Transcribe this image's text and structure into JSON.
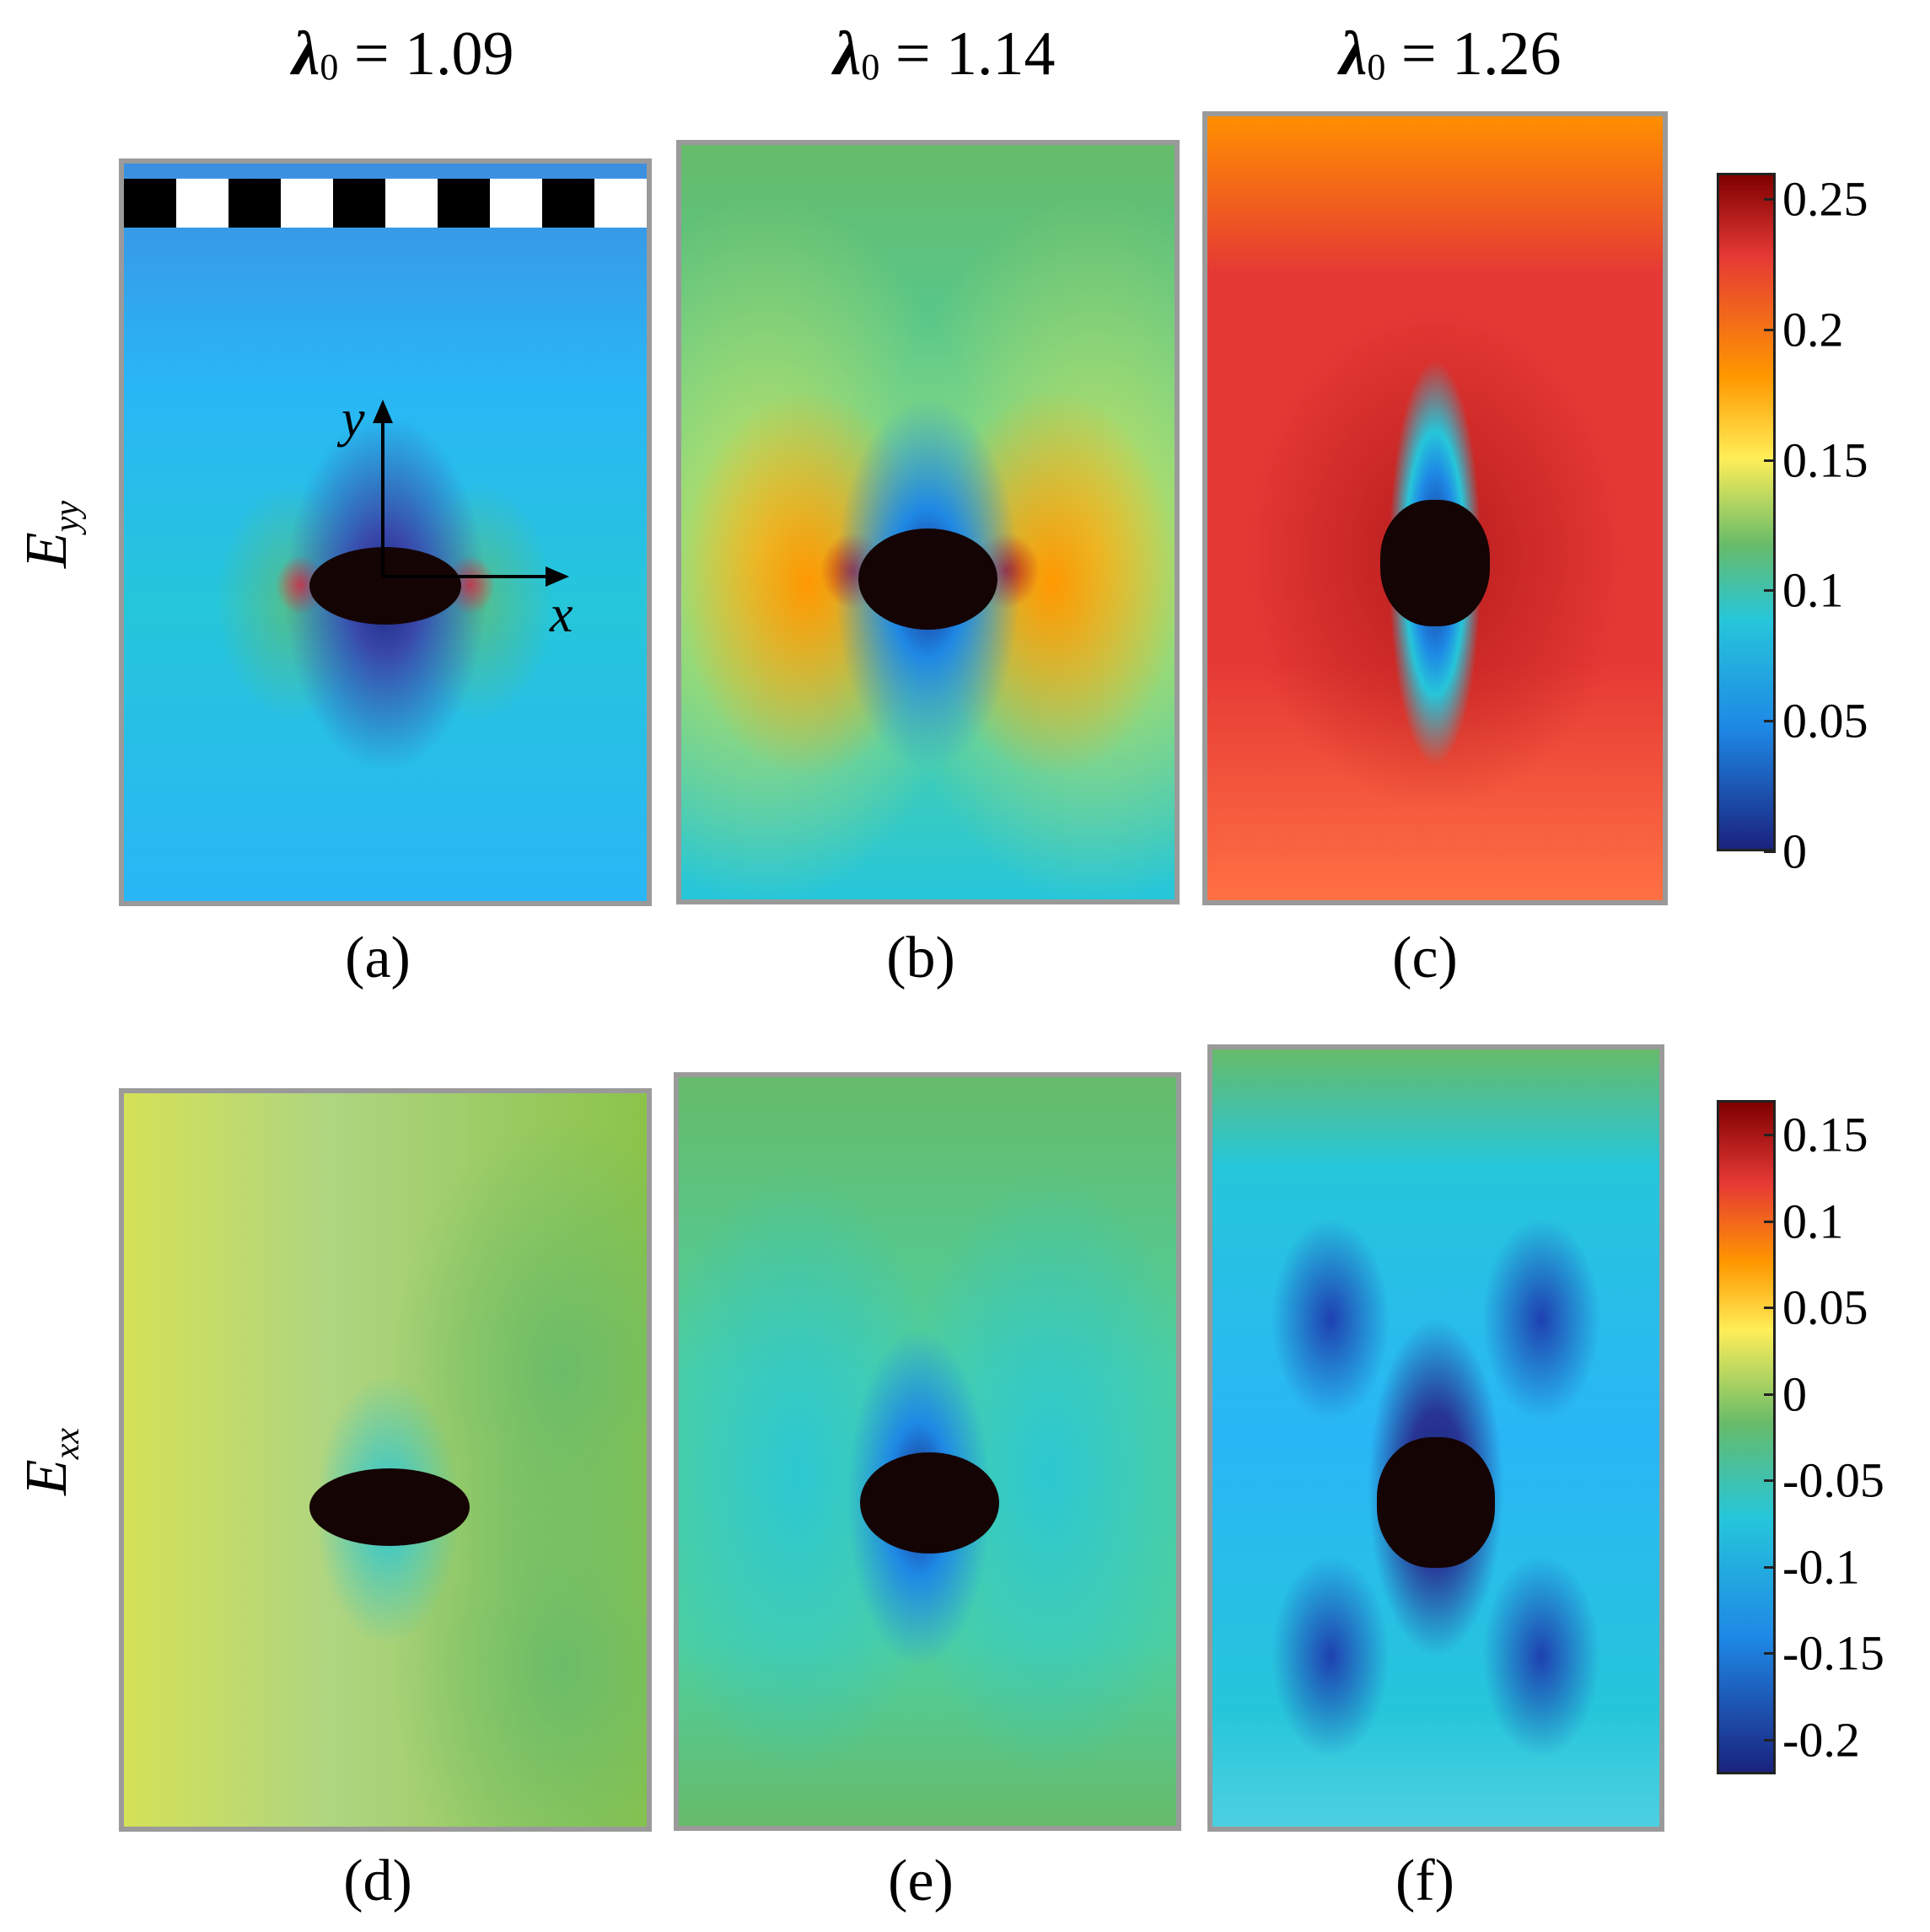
{
  "columns": [
    {
      "symbol": "λ",
      "subscript": "0",
      "value": "= 1.09"
    },
    {
      "symbol": "λ",
      "subscript": "0",
      "value": "= 1.14"
    },
    {
      "symbol": "λ",
      "subscript": "0",
      "value": "= 1.26"
    }
  ],
  "rows": [
    {
      "symbol": "E",
      "subscript": "yy"
    },
    {
      "symbol": "E",
      "subscript": "xx"
    }
  ],
  "panels": [
    {
      "label": "(a)",
      "field": "Eyy",
      "stretch": 1.09
    },
    {
      "label": "(b)",
      "field": "Eyy",
      "stretch": 1.14
    },
    {
      "label": "(c)",
      "field": "Eyy",
      "stretch": 1.26
    },
    {
      "label": "(d)",
      "field": "Exx",
      "stretch": 1.09
    },
    {
      "label": "(e)",
      "field": "Exx",
      "stretch": 1.14
    },
    {
      "label": "(f)",
      "field": "Exx",
      "stretch": 1.26
    }
  ],
  "axes": {
    "x_label": "x",
    "y_label": "y"
  },
  "colorbar_top": {
    "min": 0,
    "max": 0.26,
    "ticks": [
      {
        "value": 0.25,
        "label": "0.25"
      },
      {
        "value": 0.2,
        "label": "0.2"
      },
      {
        "value": 0.15,
        "label": "0.15"
      },
      {
        "value": 0.1,
        "label": "0.1"
      },
      {
        "value": 0.05,
        "label": "0.05"
      },
      {
        "value": 0,
        "label": "0"
      }
    ]
  },
  "colorbar_bottom": {
    "min": -0.22,
    "max": 0.17,
    "ticks": [
      {
        "value": 0.15,
        "label": "0.15"
      },
      {
        "value": 0.1,
        "label": "0.1"
      },
      {
        "value": 0.05,
        "label": "0.05"
      },
      {
        "value": 0,
        "label": "0"
      },
      {
        "value": -0.05,
        "label": "-0.05"
      },
      {
        "value": -0.1,
        "label": "-0.1"
      },
      {
        "value": -0.15,
        "label": "-0.15"
      },
      {
        "value": -0.2,
        "label": "-0.2"
      }
    ]
  },
  "colors": {
    "jet_dark_blue": "#1a237e",
    "jet_blue": "#1565c0",
    "jet_cyan": "#26c6da",
    "jet_green": "#66bb6a",
    "jet_yellow": "#ffee58",
    "jet_orange": "#ff9800",
    "jet_red": "#e53935",
    "jet_dark_red": "#7f0000",
    "hole": "#140404",
    "frame": "#9a9a9a"
  }
}
